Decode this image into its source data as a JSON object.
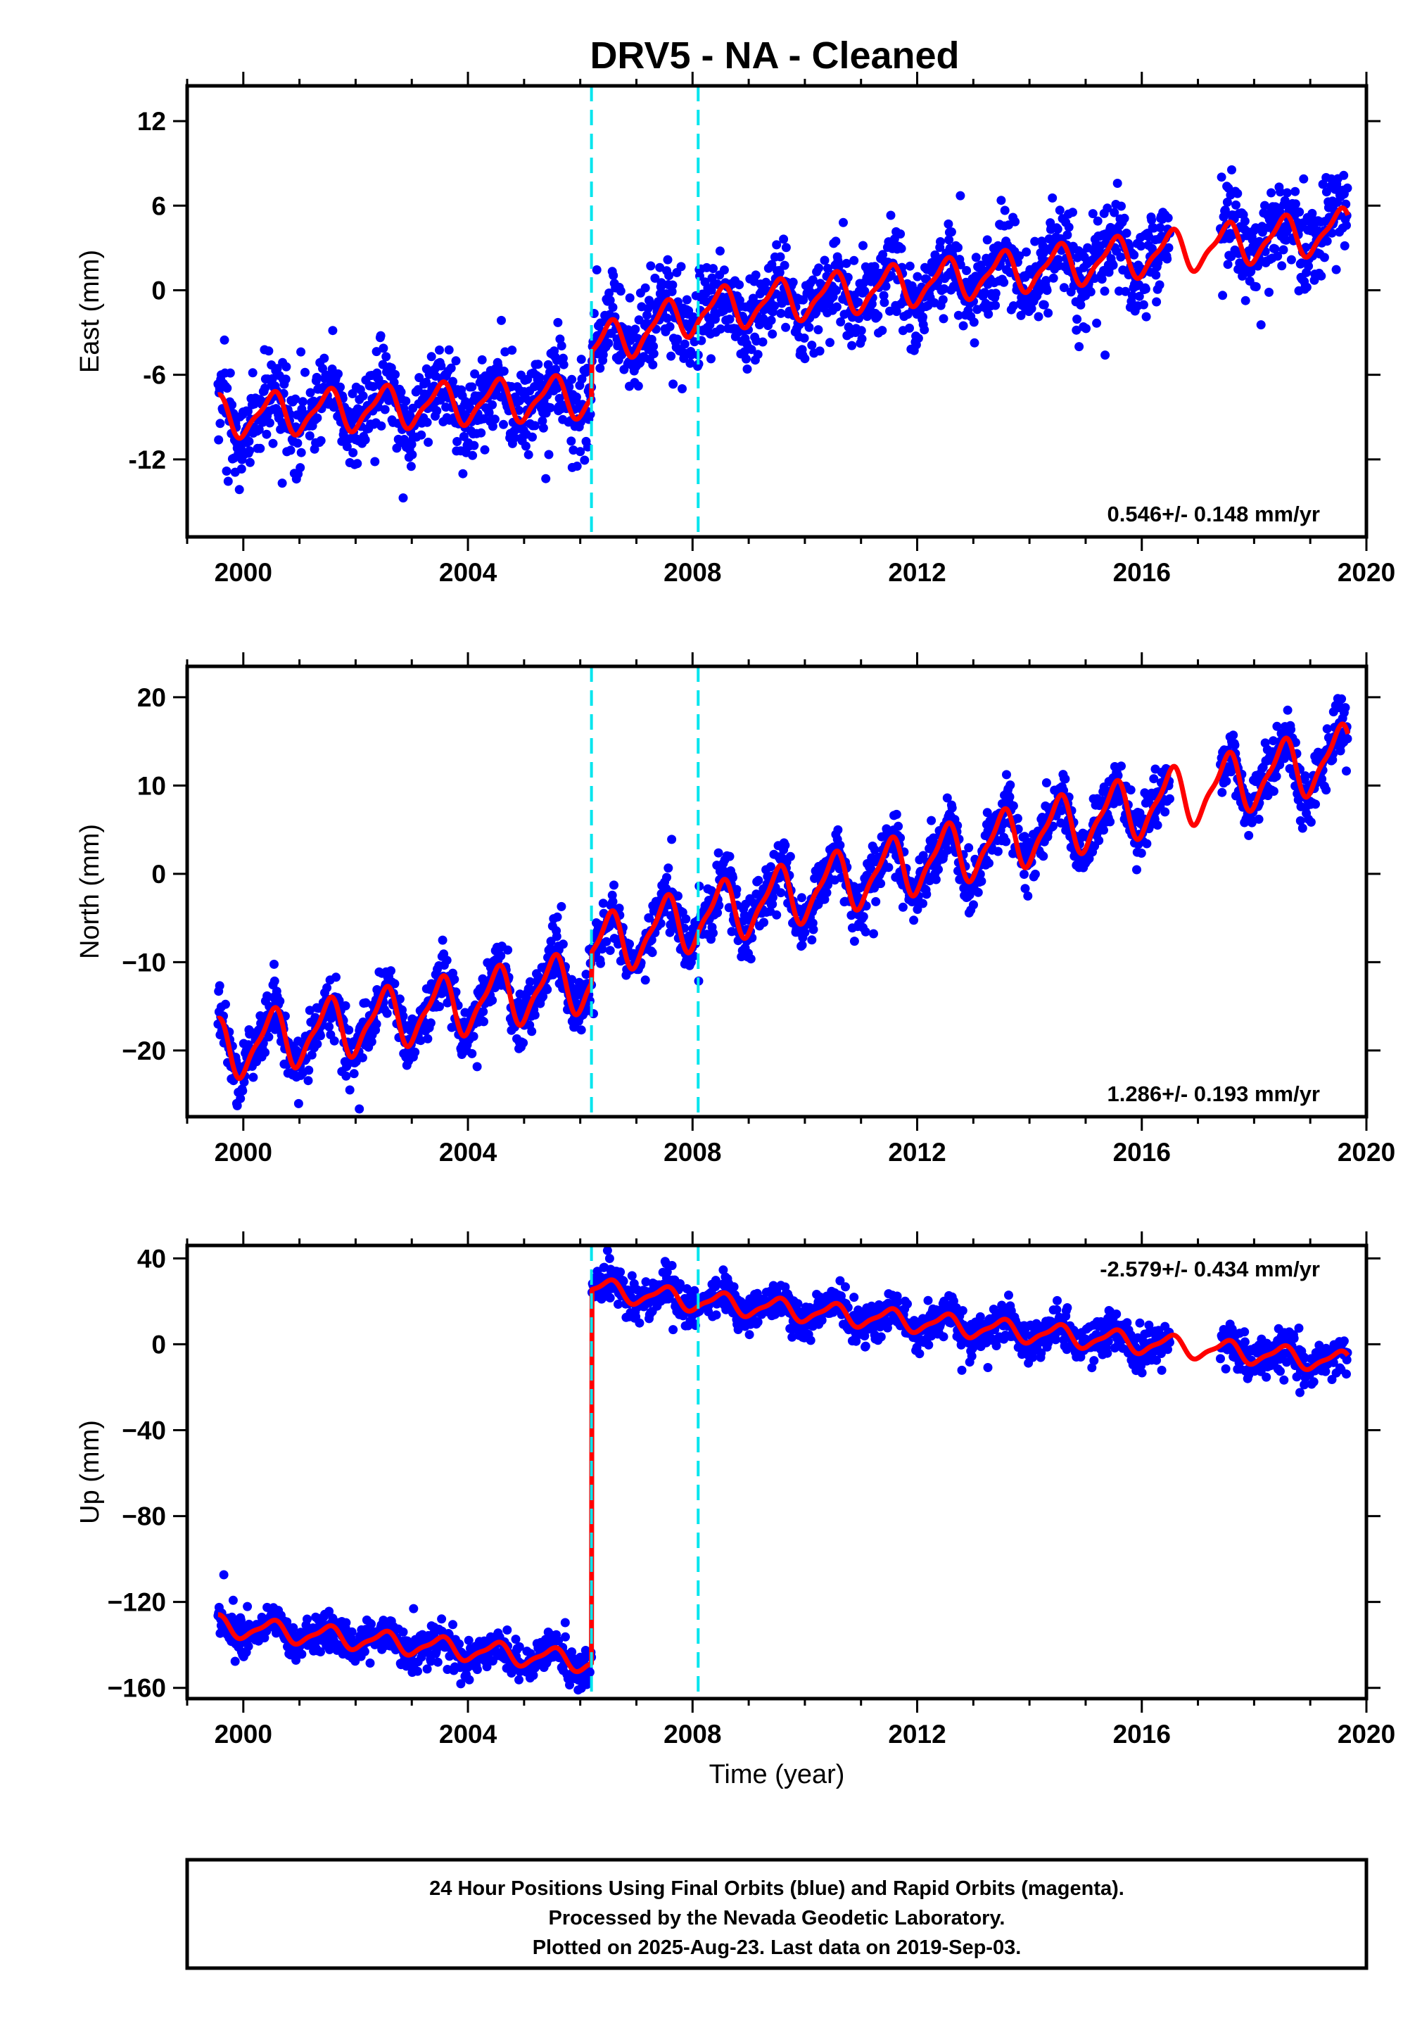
{
  "title": "DRV5  - NA - Cleaned",
  "colors": {
    "final_orbits": "#0000ff",
    "model": "#ff0000",
    "offset_lines": "#00e5ee",
    "frame": "#000000",
    "background": "#ffffff"
  },
  "footer": {
    "line1": "24 Hour Positions Using Final Orbits (blue) and Rapid Orbits (magenta).",
    "line2": "Processed by the Nevada Geodetic Laboratory.",
    "line3": "Plotted on 2025-Aug-23. Last data on 2019-Sep-03."
  },
  "chart_data": [
    {
      "type": "scatter",
      "component": "east",
      "ylabel": "East (mm)",
      "xlabel": "",
      "xlim": [
        1999.0,
        2020.0
      ],
      "ylim": [
        -17.5,
        14.5
      ],
      "xticks": [
        "2000",
        "2004",
        "2008",
        "2012",
        "2016",
        "2020"
      ],
      "yticks": [
        "12",
        "6",
        "0",
        "-6",
        "-12"
      ],
      "ytick_values": [
        12,
        6,
        0,
        -6,
        -12
      ],
      "rate_label": "0.546+/- 0.148 mm/yr",
      "rate_position": "bottom-right",
      "offset_lines": [
        2006.2,
        2008.1
      ],
      "data_start": 1999.55,
      "data_end": 2019.67,
      "gap": [
        2016.5,
        2017.4
      ],
      "trend_points": [
        [
          1999.55,
          -9.0
        ],
        [
          2006.2,
          -7.5
        ],
        [
          2006.2,
          -4.2
        ],
        [
          2008.1,
          -1.5
        ],
        [
          2019.67,
          4.3
        ]
      ],
      "seasonal_amplitude": 1.4,
      "scatter_sigma": 1.6,
      "series": [
        {
          "name": "Final Orbits (blue)",
          "kind": "points"
        },
        {
          "name": "Model",
          "kind": "line"
        }
      ]
    },
    {
      "type": "scatter",
      "component": "north",
      "ylabel": "North (mm)",
      "xlabel": "",
      "xlim": [
        1999.0,
        2020.0
      ],
      "ylim": [
        -27.5,
        23.5
      ],
      "xticks": [
        "2000",
        "2004",
        "2008",
        "2012",
        "2016",
        "2020"
      ],
      "yticks": [
        "20",
        "10",
        "0",
        "−10",
        "−20"
      ],
      "ytick_values": [
        20,
        10,
        0,
        -10,
        -20
      ],
      "rate_label": "1.286+/- 0.193 mm/yr",
      "rate_position": "bottom-right",
      "offset_lines": [
        2006.2,
        2008.1
      ],
      "data_start": 1999.55,
      "data_end": 2019.67,
      "gap": [
        2016.5,
        2017.4
      ],
      "trend_points": [
        [
          1999.55,
          -20.0
        ],
        [
          2006.2,
          -12.0
        ],
        [
          2006.2,
          -8.5
        ],
        [
          2008.1,
          -5.0
        ],
        [
          2019.67,
          13.5
        ]
      ],
      "seasonal_amplitude": 3.2,
      "scatter_sigma": 1.6,
      "series": [
        {
          "name": "Final Orbits (blue)",
          "kind": "points"
        },
        {
          "name": "Model",
          "kind": "line"
        }
      ]
    },
    {
      "type": "scatter",
      "component": "up",
      "ylabel": "Up (mm)",
      "xlabel": "Time (year)",
      "xlim": [
        1999.0,
        2020.0
      ],
      "ylim": [
        -165,
        46
      ],
      "xticks": [
        "2000",
        "2004",
        "2008",
        "2012",
        "2016",
        "2020"
      ],
      "yticks": [
        "40",
        "0",
        "−40",
        "−80",
        "−120",
        "−160"
      ],
      "ytick_values": [
        40,
        0,
        -40,
        -80,
        -120,
        -160
      ],
      "rate_label": "-2.579+/- 0.434 mm/yr",
      "rate_position": "top-right",
      "offset_lines": [
        2006.2,
        2008.1
      ],
      "data_start": 1999.55,
      "data_end": 2019.67,
      "gap": [
        2016.5,
        2017.4
      ],
      "trend_points": [
        [
          1999.55,
          -131.0
        ],
        [
          2006.2,
          -148.0
        ],
        [
          2006.2,
          26.0
        ],
        [
          2008.1,
          20.0
        ],
        [
          2019.67,
          -8.5
        ]
      ],
      "seasonal_amplitude": 4.5,
      "scatter_sigma": 4.5,
      "series": [
        {
          "name": "Final Orbits (blue)",
          "kind": "points"
        },
        {
          "name": "Model",
          "kind": "line"
        }
      ]
    }
  ]
}
